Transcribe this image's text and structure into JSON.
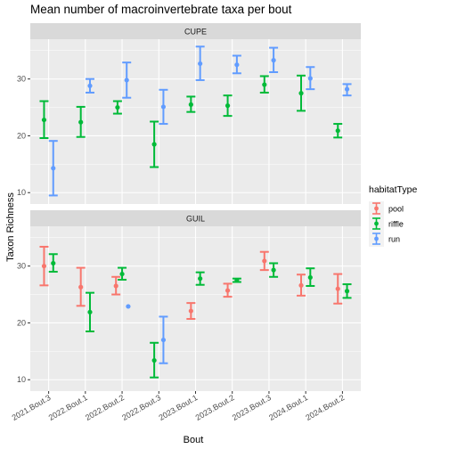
{
  "chart_data": {
    "type": "errorbar",
    "title": "Mean number of macroinvertebrate taxa per bout",
    "xlabel": "Bout",
    "ylabel": "Taxon Richness",
    "categories": [
      "2021.Bout.3",
      "2022.Bout.1",
      "2022.Bout.2",
      "2022.Bout.3",
      "2023.Bout.1",
      "2023.Bout.2",
      "2023.Bout.3",
      "2024.Bout.1",
      "2024.Bout.2"
    ],
    "ylim": [
      8,
      37
    ],
    "yticks": [
      10,
      20,
      30
    ],
    "grid": true,
    "legend": {
      "title": "habitatType",
      "position": "right",
      "entries": [
        {
          "label": "pool",
          "color": "#F8766D"
        },
        {
          "label": "riffle",
          "color": "#00BA38"
        },
        {
          "label": "run",
          "color": "#619CFF"
        }
      ]
    },
    "panels": [
      {
        "label": "CUPE",
        "series": [
          {
            "name": "riffle",
            "color": "#00BA38",
            "points": [
              {
                "x": "2021.Bout.3",
                "mean": 22.8,
                "low": 19.6,
                "high": 26.1
              },
              {
                "x": "2022.Bout.1",
                "mean": 22.4,
                "low": 19.8,
                "high": 25.1
              },
              {
                "x": "2022.Bout.2",
                "mean": 25.0,
                "low": 23.9,
                "high": 26.1
              },
              {
                "x": "2022.Bout.3",
                "mean": 18.5,
                "low": 14.5,
                "high": 22.5
              },
              {
                "x": "2023.Bout.1",
                "mean": 25.5,
                "low": 24.2,
                "high": 26.9
              },
              {
                "x": "2023.Bout.2",
                "mean": 25.3,
                "low": 23.5,
                "high": 27.1
              },
              {
                "x": "2023.Bout.3",
                "mean": 29.0,
                "low": 27.6,
                "high": 30.5
              },
              {
                "x": "2024.Bout.1",
                "mean": 27.5,
                "low": 24.4,
                "high": 30.6
              },
              {
                "x": "2024.Bout.2",
                "mean": 20.9,
                "low": 19.7,
                "high": 22.1
              }
            ]
          },
          {
            "name": "run",
            "color": "#619CFF",
            "points": [
              {
                "x": "2021.Bout.3",
                "mean": 14.3,
                "low": 9.5,
                "high": 19.1
              },
              {
                "x": "2022.Bout.1",
                "mean": 28.8,
                "low": 27.6,
                "high": 30.0
              },
              {
                "x": "2022.Bout.2",
                "mean": 29.8,
                "low": 26.7,
                "high": 32.9
              },
              {
                "x": "2022.Bout.3",
                "mean": 25.1,
                "low": 22.1,
                "high": 28.1
              },
              {
                "x": "2023.Bout.1",
                "mean": 32.7,
                "low": 29.8,
                "high": 35.7
              },
              {
                "x": "2023.Bout.2",
                "mean": 32.5,
                "low": 31.0,
                "high": 34.1
              },
              {
                "x": "2023.Bout.3",
                "mean": 33.3,
                "low": 31.2,
                "high": 35.5
              },
              {
                "x": "2024.Bout.1",
                "mean": 30.1,
                "low": 28.2,
                "high": 32.1
              },
              {
                "x": "2024.Bout.2",
                "mean": 28.2,
                "low": 27.1,
                "high": 29.1
              }
            ]
          }
        ]
      },
      {
        "label": "GUIL",
        "series": [
          {
            "name": "pool",
            "color": "#F8766D",
            "points": [
              {
                "x": "2021.Bout.3",
                "mean": 30.0,
                "low": 26.6,
                "high": 33.4
              },
              {
                "x": "2022.Bout.1",
                "mean": 26.3,
                "low": 23.0,
                "high": 29.7
              },
              {
                "x": "2022.Bout.2",
                "mean": 26.5,
                "low": 25.0,
                "high": 28.1
              },
              {
                "x": "2023.Bout.1",
                "mean": 22.1,
                "low": 20.7,
                "high": 23.5
              },
              {
                "x": "2023.Bout.2",
                "mean": 25.7,
                "low": 24.6,
                "high": 26.9
              },
              {
                "x": "2023.Bout.3",
                "mean": 30.9,
                "low": 29.3,
                "high": 32.5
              },
              {
                "x": "2024.Bout.1",
                "mean": 26.6,
                "low": 24.8,
                "high": 28.5
              },
              {
                "x": "2024.Bout.2",
                "mean": 26.0,
                "low": 23.4,
                "high": 28.6
              }
            ]
          },
          {
            "name": "riffle",
            "color": "#00BA38",
            "points": [
              {
                "x": "2021.Bout.3",
                "mean": 30.5,
                "low": 29.0,
                "high": 32.1
              },
              {
                "x": "2022.Bout.1",
                "mean": 21.9,
                "low": 18.5,
                "high": 25.3
              },
              {
                "x": "2022.Bout.2",
                "mean": 28.6,
                "low": 27.6,
                "high": 29.7
              },
              {
                "x": "2022.Bout.3",
                "mean": 13.4,
                "low": 10.4,
                "high": 16.5
              },
              {
                "x": "2023.Bout.1",
                "mean": 27.8,
                "low": 26.7,
                "high": 28.9
              },
              {
                "x": "2023.Bout.2",
                "mean": 27.5,
                "low": 27.2,
                "high": 27.8
              },
              {
                "x": "2023.Bout.3",
                "mean": 29.3,
                "low": 28.1,
                "high": 30.5
              },
              {
                "x": "2024.Bout.1",
                "mean": 28.0,
                "low": 26.5,
                "high": 29.6
              },
              {
                "x": "2024.Bout.2",
                "mean": 25.6,
                "low": 24.4,
                "high": 26.8
              }
            ]
          },
          {
            "name": "run",
            "color": "#619CFF",
            "points": [
              {
                "x": "2022.Bout.2",
                "mean": 22.9
              },
              {
                "x": "2022.Bout.3",
                "mean": 17.0,
                "low": 12.9,
                "high": 21.1
              }
            ]
          }
        ]
      }
    ]
  }
}
